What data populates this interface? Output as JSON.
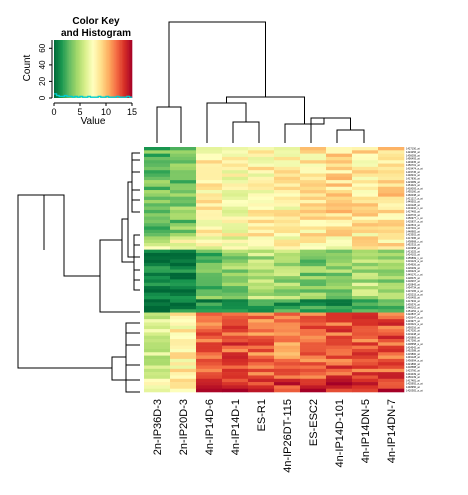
{
  "chart_data": {
    "type": "heatmap",
    "title": "",
    "columns": [
      "2n-IP36D-3",
      "2n-IP20D-3",
      "4n-IP14D-6",
      "4n-IP14D-1",
      "ES-R1",
      "4n-IP26DT-115",
      "ES-ESC2",
      "4n-IP14D-101",
      "4n-IP14DN-5",
      "4n-IP14DN-7"
    ],
    "row_count": 74,
    "value_range": [
      0,
      15
    ],
    "colors": {
      "low": "#006837",
      "mid": "#FFFFBF",
      "high": "#A50026",
      "histogram": "#00CED1"
    },
    "row_blocks": [
      {
        "rows": 27,
        "values": [
          3,
          3.5,
          8,
          7.5,
          8,
          8,
          8.5,
          9,
          8.5,
          9
        ]
      },
      {
        "rows": 4,
        "values": [
          6,
          7,
          7.5,
          7,
          7.5,
          7.5,
          8,
          8,
          8.5,
          8.5
        ]
      },
      {
        "rows": 15,
        "values": [
          0.5,
          0.5,
          3,
          4,
          5,
          4.5,
          3.5,
          4,
          5,
          4
        ]
      },
      {
        "rows": 4,
        "values": [
          0.5,
          0.5,
          1,
          1.5,
          2,
          2,
          1.5,
          2,
          2,
          2
        ]
      },
      {
        "rows": 20,
        "values": [
          6,
          8,
          12,
          12.5,
          12,
          11.5,
          12,
          12.5,
          12.5,
          12.5
        ]
      },
      {
        "rows": 4,
        "values": [
          8,
          9,
          13.5,
          14,
          13.5,
          13.5,
          14,
          14,
          14,
          14
        ]
      }
    ],
    "color_key": {
      "title": "Color Key\nand Histogram",
      "xlabel": "Value",
      "ylabel": "Count",
      "xticks": [
        "0",
        "5",
        "10",
        "15"
      ],
      "yticks": [
        "0",
        "20",
        "40",
        "60"
      ],
      "histogram_counts": [
        5,
        3,
        2,
        2,
        3,
        2,
        2,
        1,
        2,
        1,
        2,
        1,
        1,
        2,
        1,
        1,
        1,
        2,
        1,
        1,
        2,
        1,
        1,
        1,
        2,
        1,
        1,
        1,
        2,
        1
      ]
    },
    "row_labels": [
      "1427150_at",
      "1424256_at",
      "1436059_at",
      "1456493_at",
      "1449335_at",
      "1450701_at",
      "1419474_a_at",
      "1433745_at",
      "1448231_at",
      "1417836_at",
      "1423089_at",
      "1451021_at",
      "1418093_a_at",
      "1455160_at",
      "1460038_at",
      "1421217_a_at",
      "1449502_at",
      "1416128_at",
      "1434210_s_at",
      "1427465_at",
      "1418715_at",
      "1450977_s_at",
      "1425837_a_at",
      "1422513_at",
      "1437401_at",
      "1448982_at",
      "1423502_at",
      "1417395_at",
      "1438968_x_at",
      "1452315_at",
      "1416958_at",
      "1421025_at",
      "1424102_at",
      "1455899_x_at",
      "1419123_a_at",
      "1434926_at",
      "1426209_at",
      "1436223_at",
      "1449170_x_at",
      "1428470_at",
      "1418267_at",
      "1420843_at",
      "1454734_at",
      "1437165_a_at",
      "1425215_a_at",
      "1416405_at",
      "1417932_at",
      "1439376_at",
      "1448162_at",
      "1451452_a_at",
      "1422837_at",
      "1420647_a_at",
      "1433977_at",
      "1416021_a_at",
      "1450016_at",
      "1427020_at",
      "1419248_at",
      "1426869_at",
      "1417266_at",
      "1438658_a_at",
      "1424542_at",
      "1452388_at",
      "1415800_at",
      "1449128_at",
      "1436994_a_at",
      "1421896_at",
      "1418588_at",
      "1423760_at",
      "1434439_at",
      "1456139_at",
      "1417481_at",
      "1425992_a_at",
      "1448950_at",
      "1420382_a_at"
    ]
  }
}
